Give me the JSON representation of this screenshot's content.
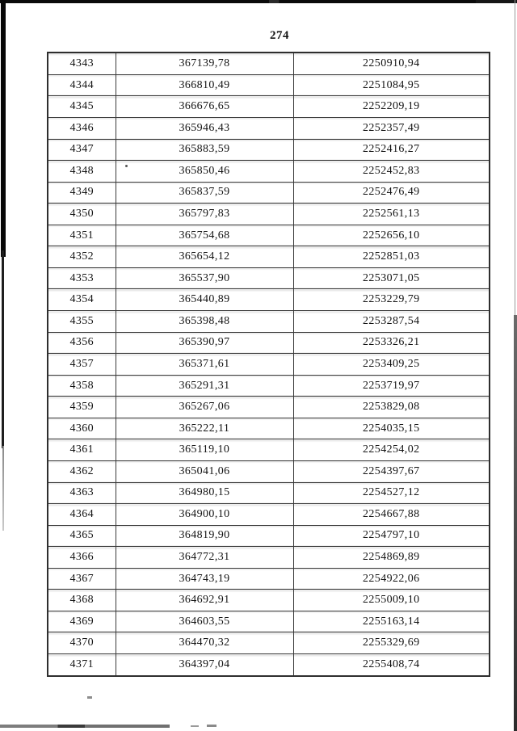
{
  "page": {
    "number": "274"
  },
  "table": {
    "rows": [
      [
        "4343",
        "367139,78",
        "2250910,94"
      ],
      [
        "4344",
        "366810,49",
        "2251084,95"
      ],
      [
        "4345",
        "366676,65",
        "2252209,19"
      ],
      [
        "4346",
        "365946,43",
        "2252357,49"
      ],
      [
        "4347",
        "365883,59",
        "2252416,27"
      ],
      [
        "4348",
        "365850,46",
        "2252452,83"
      ],
      [
        "4349",
        "365837,59",
        "2252476,49"
      ],
      [
        "4350",
        "365797,83",
        "2252561,13"
      ],
      [
        "4351",
        "365754,68",
        "2252656,10"
      ],
      [
        "4352",
        "365654,12",
        "2252851,03"
      ],
      [
        "4353",
        "365537,90",
        "2253071,05"
      ],
      [
        "4354",
        "365440,89",
        "2253229,79"
      ],
      [
        "4355",
        "365398,48",
        "2253287,54"
      ],
      [
        "4356",
        "365390,97",
        "2253326,21"
      ],
      [
        "4357",
        "365371,61",
        "2253409,25"
      ],
      [
        "4358",
        "365291,31",
        "2253719,97"
      ],
      [
        "4359",
        "365267,06",
        "2253829,08"
      ],
      [
        "4360",
        "365222,11",
        "2254035,15"
      ],
      [
        "4361",
        "365119,10",
        "2254254,02"
      ],
      [
        "4362",
        "365041,06",
        "2254397,67"
      ],
      [
        "4363",
        "364980,15",
        "2254527,12"
      ],
      [
        "4364",
        "364900,10",
        "2254667,88"
      ],
      [
        "4365",
        "364819,90",
        "2254797,10"
      ],
      [
        "4366",
        "364772,31",
        "2254869,89"
      ],
      [
        "4367",
        "364743,19",
        "2254922,06"
      ],
      [
        "4368",
        "364692,91",
        "2255009,10"
      ],
      [
        "4369",
        "364603,55",
        "2255163,14"
      ],
      [
        "4370",
        "364470,32",
        "2255329,69"
      ],
      [
        "4371",
        "364397,04",
        "2255408,74"
      ]
    ]
  }
}
